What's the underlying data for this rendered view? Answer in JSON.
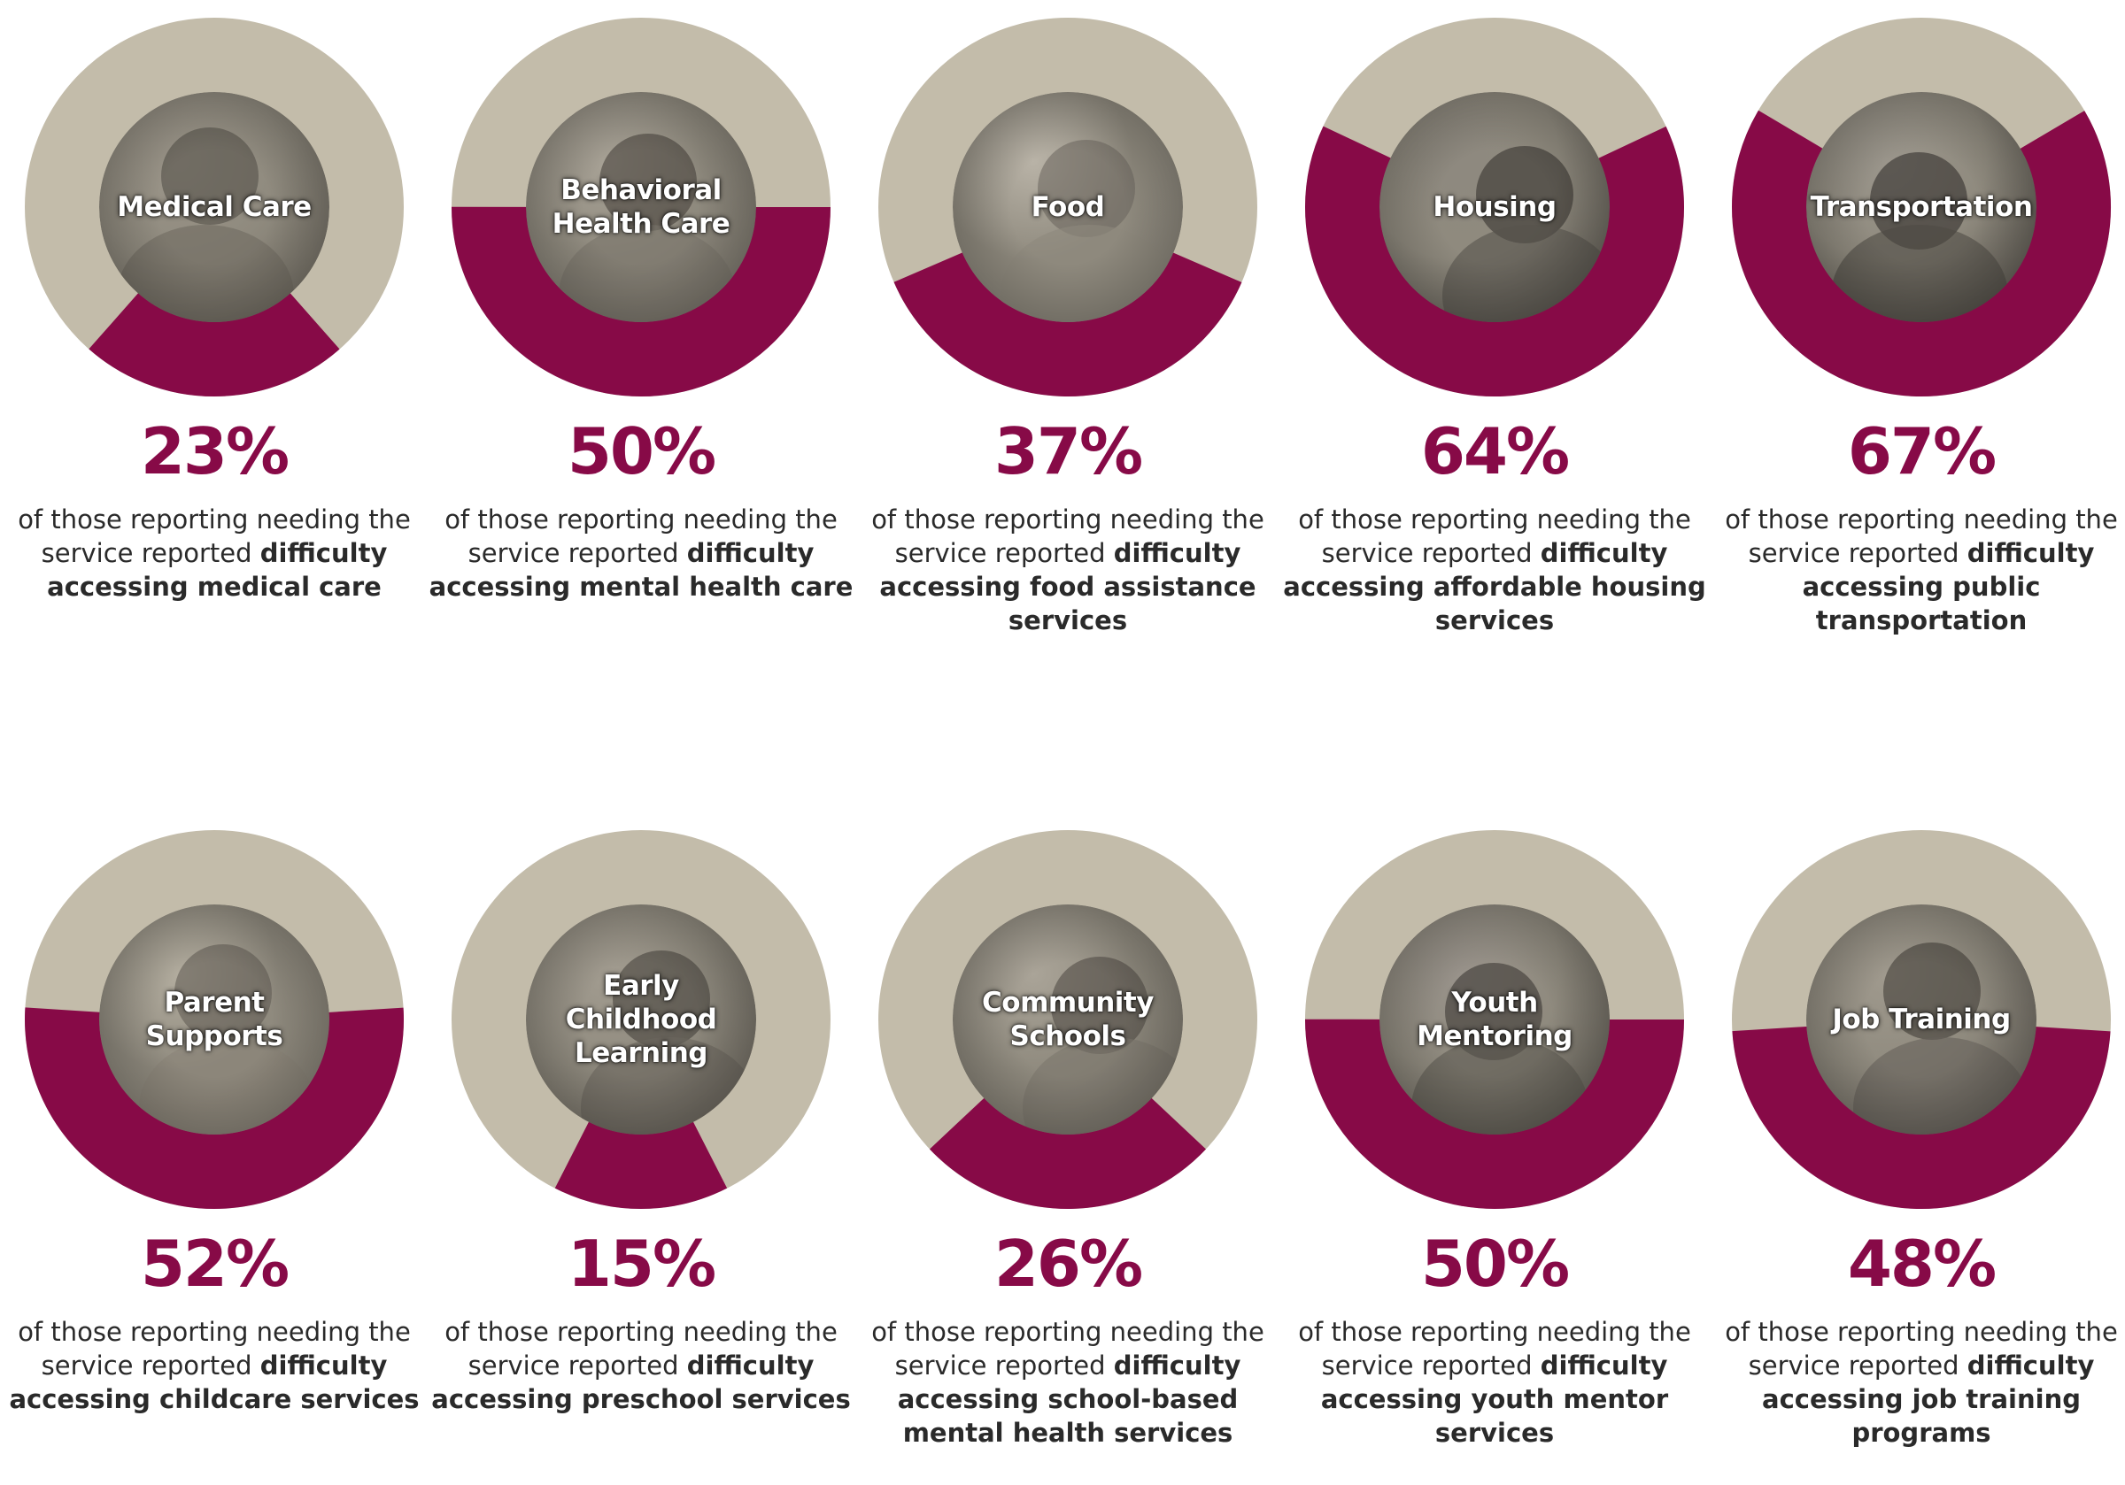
{
  "colors": {
    "accent": "#870a47",
    "track": "#c3bcaa",
    "text": "#2a2a2a",
    "photo_tint": "#8f8a7e"
  },
  "chart_data": {
    "type": "pie",
    "items": [
      {
        "label": "Medical Care",
        "value": 23,
        "pct_text": "23%",
        "caption_prefix": "of those reporting needing the service reported",
        "caption_bold": "difficulty accessing medical care",
        "photo": "hospital-patient-photo"
      },
      {
        "label": "Behavioral\nHealth Care",
        "value": 50,
        "pct_text": "50%",
        "caption_prefix": "of those reporting needing the service reported",
        "caption_bold": "difficulty accessing mental health care",
        "photo": "embrace-photo"
      },
      {
        "label": "Food",
        "value": 37,
        "pct_text": "37%",
        "caption_prefix": "of those reporting needing the service reported",
        "caption_bold": "difficulty accessing food assistance services",
        "photo": "baby-photo"
      },
      {
        "label": "Housing",
        "value": 64,
        "pct_text": "64%",
        "caption_prefix": "of those reporting needing the service reported",
        "caption_bold": "difficulty  accessing affordable housing services",
        "photo": "room-doorway-photo"
      },
      {
        "label": "Transportation",
        "value": 67,
        "pct_text": "67%",
        "caption_prefix": "of those reporting needing the service reported",
        "caption_bold": "difficulty accessing public transportation",
        "photo": "phone-map-photo"
      },
      {
        "label": "Parent\nSupports",
        "value": 52,
        "pct_text": "52%",
        "caption_prefix": "of those reporting needing the service reported",
        "caption_bold": "difficulty accessing childcare services",
        "photo": "toddler-photo"
      },
      {
        "label": "Early\nChildhood\nLearning",
        "value": 15,
        "pct_text": "15%",
        "caption_prefix": "of those reporting needing the service reported",
        "caption_bold": "difficulty accessing preschool services",
        "photo": "children-smiling-photo"
      },
      {
        "label": "Community\nSchools",
        "value": 26,
        "pct_text": "26%",
        "caption_prefix": "of those reporting needing the service reported",
        "caption_bold": "difficulty accessing school-based mental health services",
        "photo": "school-hallway-photo"
      },
      {
        "label": "Youth\nMentoring",
        "value": 50,
        "pct_text": "50%",
        "caption_prefix": "of those reporting needing the service reported",
        "caption_bold": "difficulty accessing youth mentor services",
        "photo": "mentor-and-child-photo"
      },
      {
        "label": "Job Training",
        "value": 48,
        "pct_text": "48%",
        "caption_prefix": "of those reporting needing the service reported",
        "caption_bold": "difficulty accessing job training programs",
        "photo": "man-with-glasses-photo"
      }
    ]
  }
}
